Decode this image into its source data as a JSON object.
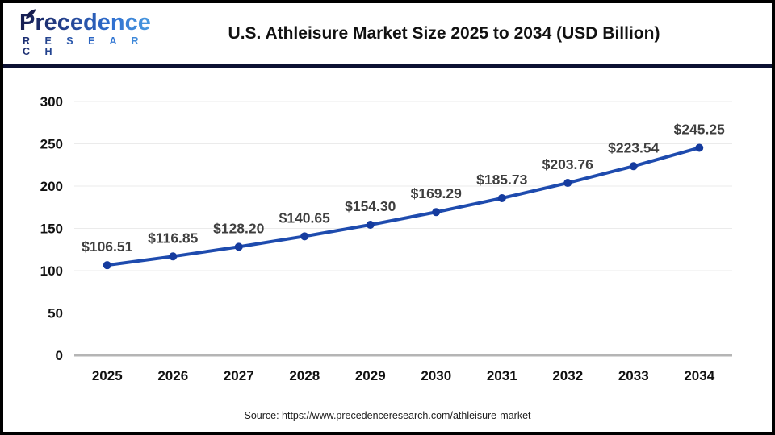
{
  "header": {
    "logo_line1": "Precedence",
    "logo_line2": "R E S E A R C H",
    "title": "U.S. Athleisure Market Size 2025 to 2034 (USD Billion)"
  },
  "chart_data": {
    "type": "line",
    "title": "U.S. Athleisure Market Size 2025 to 2034 (USD Billion)",
    "categories": [
      "2025",
      "2026",
      "2027",
      "2028",
      "2029",
      "2030",
      "2031",
      "2032",
      "2033",
      "2034"
    ],
    "values": [
      106.51,
      116.85,
      128.2,
      140.65,
      154.3,
      169.29,
      185.73,
      203.76,
      223.54,
      245.25
    ],
    "point_labels": [
      "$106.51",
      "$116.85",
      "$128.20",
      "$140.65",
      "$154.30",
      "$169.29",
      "$185.73",
      "$203.76",
      "$223.54",
      "$245.25"
    ],
    "xlabel": "",
    "ylabel": "",
    "ylim": [
      0,
      300
    ],
    "yticks": [
      0,
      50,
      100,
      150,
      200,
      250,
      300
    ],
    "grid": true,
    "legend_position": "none",
    "line_color": "#1e4bae",
    "marker_color": "#153b9e",
    "data_label_color": "#3f3f3f",
    "tick_label_color": "#111111",
    "gridline_color": "#ebebeb",
    "axis_line_color": "#b5b5b5"
  },
  "footer": {
    "source": "Source: https://www.precedenceresearch.com/athleisure-market"
  }
}
